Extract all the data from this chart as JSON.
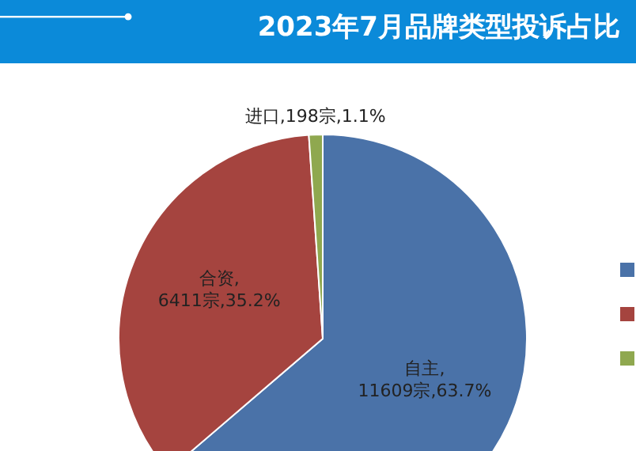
{
  "chart_data": {
    "type": "pie",
    "title": "2023年7月品牌类型投诉占比",
    "categories": [
      "自主",
      "合资",
      "进口"
    ],
    "values": [
      11609,
      6411,
      198
    ],
    "colors": [
      "#4a72a8",
      "#a5443f",
      "#8fa84f"
    ],
    "value_labels": [
      ",11609宗,63.7%",
      ",6411宗,35.2%",
      ",198宗,1.1%"
    ]
  }
}
